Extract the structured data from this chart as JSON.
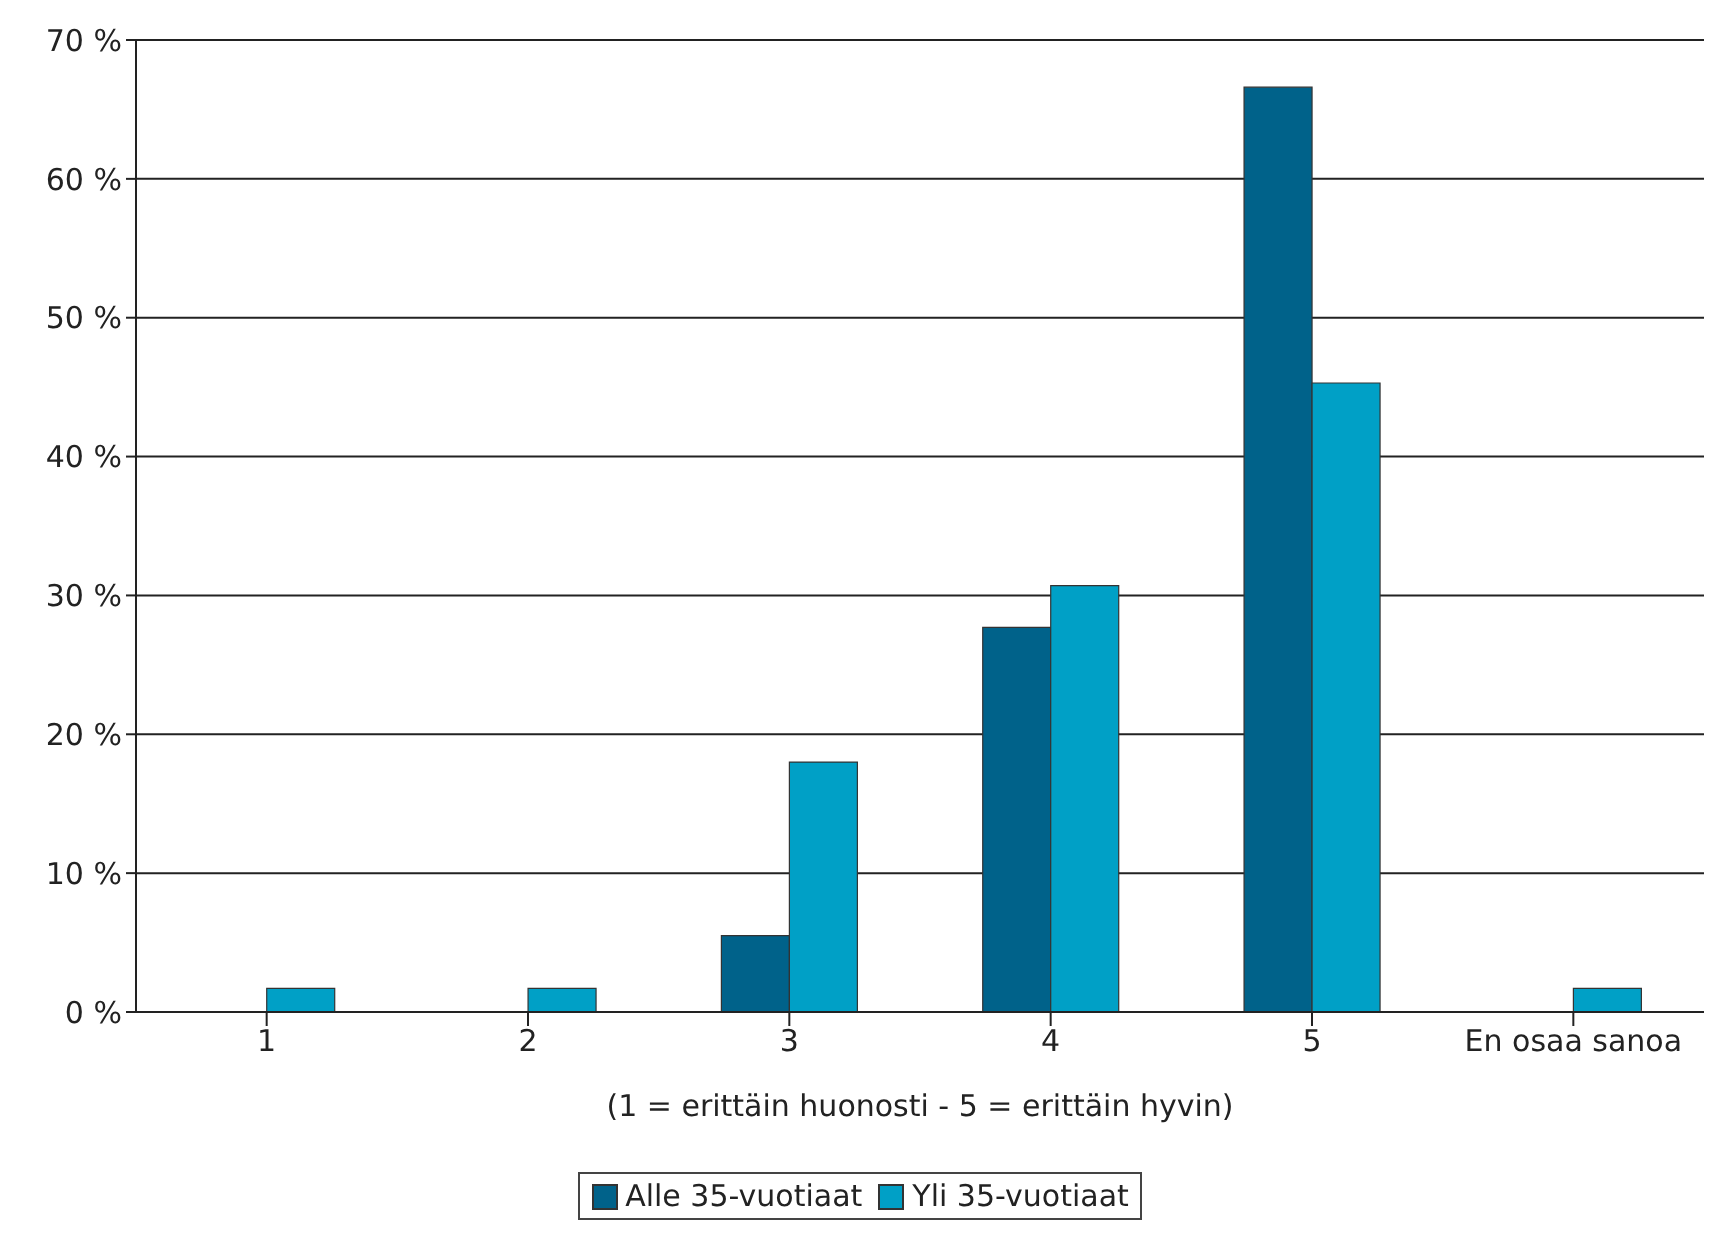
{
  "chart_data": {
    "type": "bar",
    "categories": [
      "1",
      "2",
      "3",
      "4",
      "5",
      "En osaa sanoa"
    ],
    "xlabel": "(1 = erittäin huonosti - 5 = erittäin hyvin)",
    "series": [
      {
        "name": "Alle 35-vuotiaat",
        "color": "#00628a",
        "values": [
          0,
          0,
          5.5,
          27.7,
          66.6,
          0
        ]
      },
      {
        "name": "Yli 35-vuotiaat",
        "color": "#00a0c6",
        "values": [
          1.7,
          1.7,
          18.0,
          30.7,
          45.3,
          1.7
        ]
      }
    ],
    "ylim": [
      0,
      70
    ],
    "yticks": [
      {
        "value": 0,
        "label": "0 %"
      },
      {
        "value": 10,
        "label": "10 %"
      },
      {
        "value": 20,
        "label": "20 %"
      },
      {
        "value": 30,
        "label": "30 %"
      },
      {
        "value": 40,
        "label": "40 %"
      },
      {
        "value": 50,
        "label": "50 %"
      },
      {
        "value": 60,
        "label": "60 %"
      },
      {
        "value": 70,
        "label": "70 %"
      }
    ],
    "grid": "y",
    "legend": "bottom"
  }
}
